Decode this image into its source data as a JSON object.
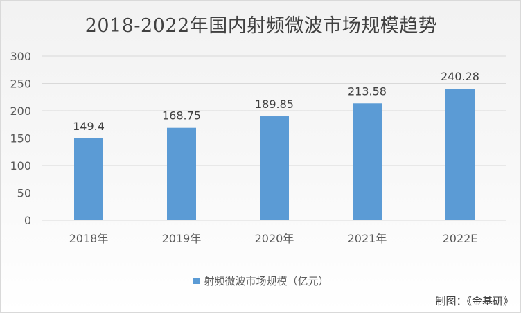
{
  "chart_data": {
    "type": "bar",
    "title": "2018-2022年国内射频微波市场规模趋势",
    "categories": [
      "2018年",
      "2019年",
      "2020年",
      "2021年",
      "2022E"
    ],
    "series": [
      {
        "name": "射频微波市场规模（亿元）",
        "values": [
          149.4,
          168.75,
          189.85,
          213.58,
          240.28
        ],
        "labels": [
          "149.4",
          "168.75",
          "189.85",
          "213.58",
          "240.28"
        ],
        "color": "#5b9bd5"
      }
    ],
    "ylim": [
      0,
      300
    ],
    "yticks": [
      0,
      50,
      100,
      150,
      200,
      250,
      300
    ],
    "grid": true,
    "legend": "bottom"
  },
  "source": "制图：《金基研》"
}
